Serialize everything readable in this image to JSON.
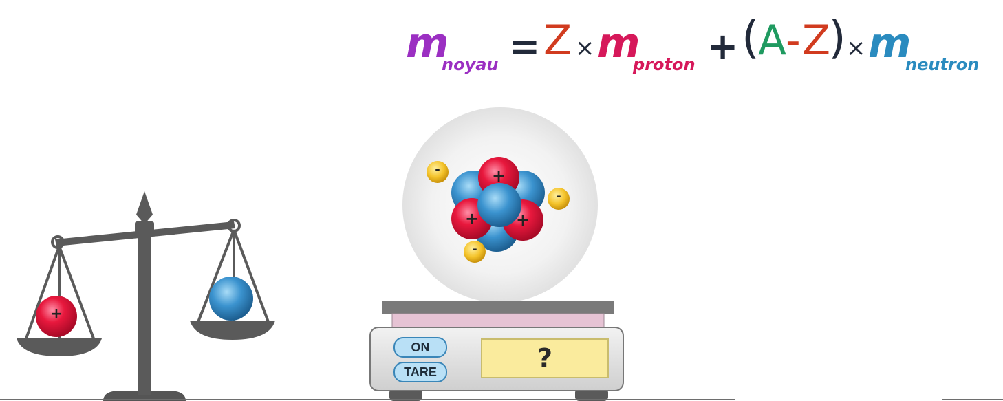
{
  "formula": {
    "m_label": "m",
    "noyau": "noyau",
    "equals": "=",
    "Z": "Z",
    "times": "×",
    "proton": "proton",
    "plus": "+",
    "open_paren": "(",
    "A": "A",
    "minus": "-",
    "close_paren": ")",
    "neutron": "neutron",
    "colors": {
      "m_noyau": "#9b2fc2",
      "Z": "#d13b1f",
      "m_proton": "#d6185a",
      "A": "#1f9a60",
      "m_neutron": "#2a8bbf",
      "operator": "#222a3a"
    }
  },
  "scale": {
    "on_label": "ON",
    "tare_label": "TARE",
    "display_value": "?"
  },
  "atom": {
    "proton_sign": "+",
    "electron_sign": "-"
  },
  "balance": {
    "left_particle_sign": "+"
  },
  "icons": [
    "balance-icon",
    "atom-icon",
    "kitchen-scale-icon",
    "proton-icon",
    "neutron-icon",
    "electron-icon"
  ]
}
